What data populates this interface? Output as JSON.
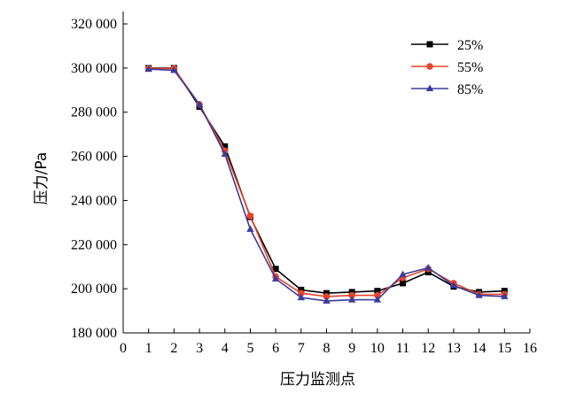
{
  "chart_data": {
    "type": "line",
    "xlabel": "压力监测点",
    "ylabel": "压力/Pa",
    "xlim": [
      0,
      16
    ],
    "ylim": [
      180000,
      320000
    ],
    "x_ticks": [
      "0",
      "1",
      "2",
      "3",
      "4",
      "5",
      "6",
      "7",
      "8",
      "9",
      "10",
      "11",
      "12",
      "13",
      "14",
      "15",
      "16"
    ],
    "y_ticks": [
      "180 000",
      "200 000",
      "220 000",
      "240 000",
      "260 000",
      "280 000",
      "300 000",
      "320 000"
    ],
    "x_tick_values": [
      0,
      1,
      2,
      3,
      4,
      5,
      6,
      7,
      8,
      9,
      10,
      11,
      12,
      13,
      14,
      15,
      16
    ],
    "y_tick_values": [
      180000,
      200000,
      220000,
      240000,
      260000,
      280000,
      300000,
      320000
    ],
    "grid": false,
    "legend_position": "top-right",
    "x": [
      1,
      2,
      3,
      4,
      5,
      6,
      7,
      8,
      9,
      10,
      11,
      12,
      13,
      14,
      15
    ],
    "series": [
      {
        "name": "25%",
        "color": "#000000",
        "marker": "square",
        "values": [
          300000,
          300000,
          282500,
          264500,
          232500,
          209000,
          199500,
          198000,
          198500,
          199000,
          202500,
          207500,
          201000,
          198500,
          199000
        ]
      },
      {
        "name": "55%",
        "color": "#e8452c",
        "marker": "circle",
        "values": [
          299800,
          299800,
          283500,
          262500,
          233000,
          205500,
          198000,
          196500,
          197000,
          197000,
          205000,
          209000,
          202500,
          197500,
          197500
        ]
      },
      {
        "name": "85%",
        "color": "#3c3c9c",
        "marker": "triangle",
        "values": [
          299500,
          299000,
          283500,
          261000,
          227000,
          204500,
          196000,
          194500,
          195000,
          195000,
          206500,
          209500,
          201500,
          197000,
          196500
        ]
      }
    ]
  }
}
